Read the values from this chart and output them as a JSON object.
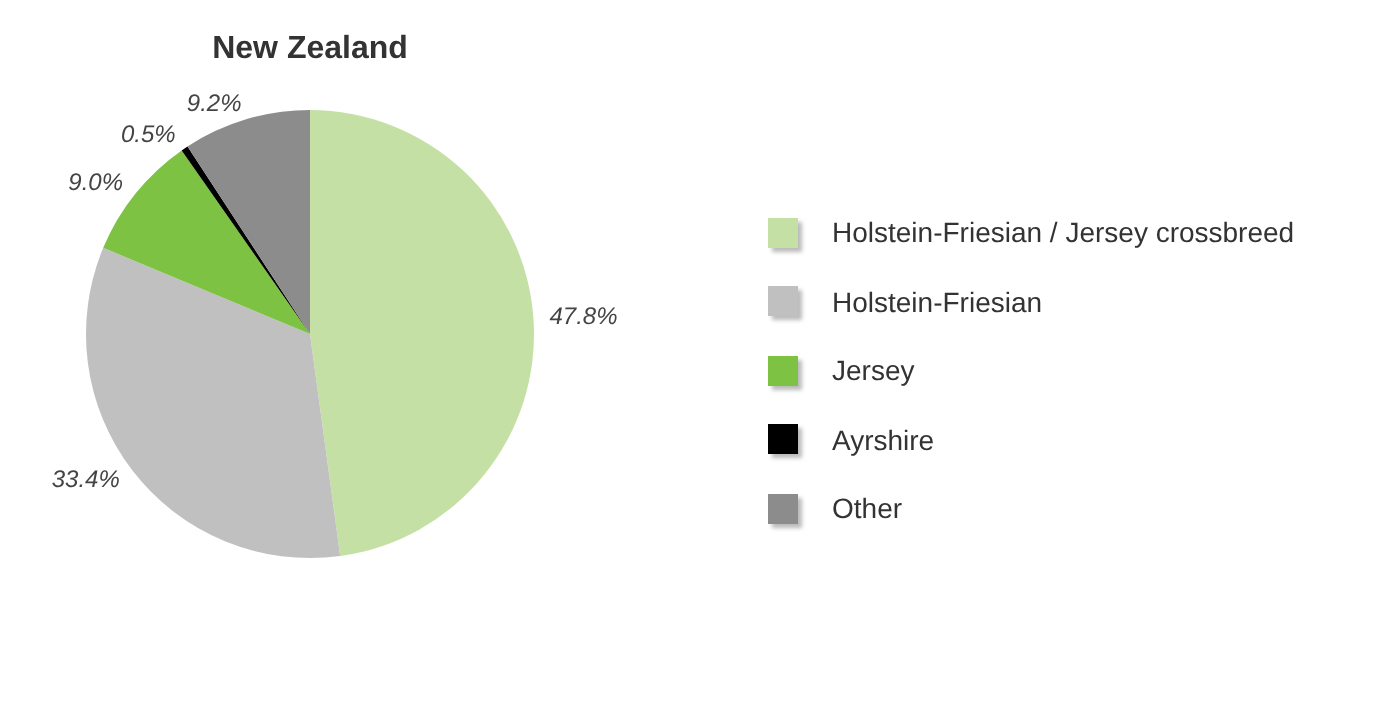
{
  "chart_data": {
    "type": "pie",
    "title": "New Zealand",
    "categories": [
      "Holstein-Friesian / Jersey crossbreed",
      "Holstein-Friesian",
      "Jersey",
      "Ayrshire",
      "Other"
    ],
    "values": [
      47.8,
      33.4,
      9.0,
      0.5,
      9.2
    ],
    "colors": [
      "#c5e0a5",
      "#c0c0c0",
      "#7dc242",
      "#000000",
      "#8c8c8c"
    ],
    "value_labels": [
      "47.8%",
      "33.4%",
      "9.0%",
      "0.5%",
      "9.2%"
    ],
    "legend": "right"
  }
}
